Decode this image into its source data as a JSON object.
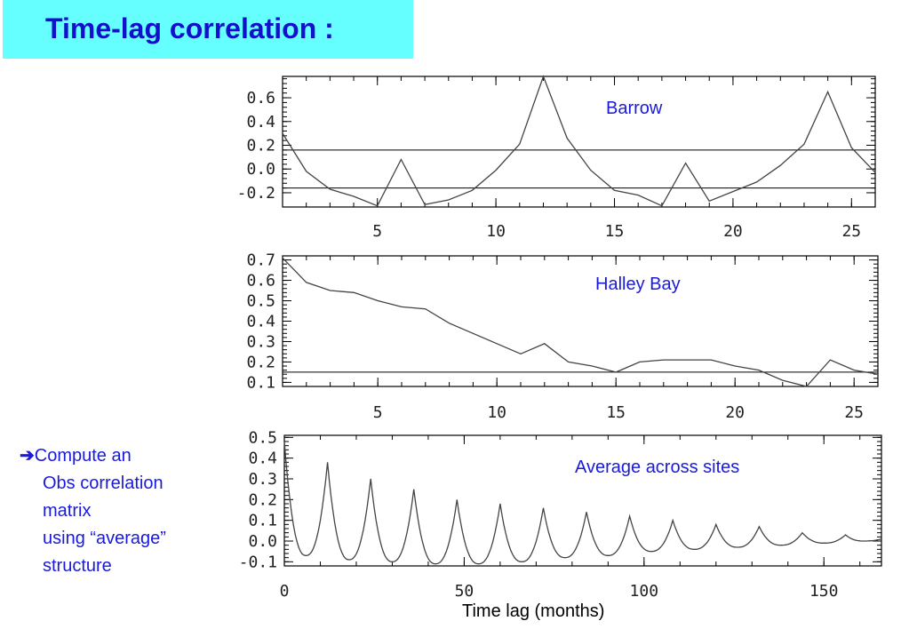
{
  "title": "Time-lag correlation :",
  "side_note": {
    "arrow": "➔",
    "lines": [
      "Compute an",
      "Obs correlation",
      "matrix",
      "using “average”",
      "structure"
    ]
  },
  "colors": {
    "title_bg": "#66ffff",
    "title_text": "#1111cc",
    "annotation_text": "#1a1adb",
    "plot_line": "#444444"
  },
  "x_axis_label": "Time lag (months)",
  "chart_data": [
    {
      "type": "line",
      "label": "Barrow",
      "xlim": [
        1,
        26
      ],
      "ylim": [
        -0.32,
        0.78
      ],
      "xticks": [
        5,
        10,
        15,
        20,
        25
      ],
      "yticks": [
        0.6,
        0.4,
        0.2,
        0.0,
        -0.2
      ],
      "ytick_labels": [
        "0.6",
        "0.4",
        "0.2",
        "0.0",
        "-0.2"
      ],
      "reference_lines": [
        0.16,
        -0.16
      ],
      "x": [
        1,
        2,
        3,
        4,
        5,
        6,
        7,
        8,
        9,
        10,
        11,
        12,
        13,
        14,
        15,
        16,
        17,
        18,
        19,
        20,
        21,
        22,
        23,
        24,
        25,
        26
      ],
      "y": [
        0.3,
        -0.02,
        -0.17,
        -0.23,
        -0.31,
        0.08,
        -0.3,
        -0.26,
        -0.18,
        -0.01,
        0.21,
        0.78,
        0.26,
        -0.01,
        -0.18,
        -0.22,
        -0.31,
        0.05,
        -0.27,
        -0.19,
        -0.11,
        0.03,
        0.21,
        0.65,
        0.18,
        -0.03
      ]
    },
    {
      "type": "line",
      "label": "Halley Bay",
      "xlim": [
        1,
        26
      ],
      "ylim": [
        0.08,
        0.72
      ],
      "xticks": [
        5,
        10,
        15,
        20,
        25
      ],
      "yticks": [
        0.7,
        0.6,
        0.5,
        0.4,
        0.3,
        0.2,
        0.1
      ],
      "ytick_labels": [
        "0.7",
        "0.6",
        "0.5",
        "0.4",
        "0.3",
        "0.2",
        "0.1"
      ],
      "reference_lines": [
        0.15
      ],
      "x": [
        1,
        2,
        3,
        4,
        5,
        6,
        7,
        8,
        9,
        10,
        11,
        12,
        13,
        14,
        15,
        16,
        17,
        18,
        19,
        20,
        21,
        22,
        23,
        24,
        25,
        26
      ],
      "y": [
        0.71,
        0.59,
        0.55,
        0.54,
        0.5,
        0.47,
        0.46,
        0.39,
        0.34,
        0.29,
        0.24,
        0.29,
        0.2,
        0.18,
        0.15,
        0.2,
        0.21,
        0.21,
        0.21,
        0.18,
        0.16,
        0.11,
        0.08,
        0.21,
        0.16,
        0.14
      ]
    },
    {
      "type": "line",
      "label": "Average across sites",
      "xlim": [
        0,
        166
      ],
      "ylim": [
        -0.12,
        0.51
      ],
      "xticks": [
        0,
        50,
        100,
        150
      ],
      "yticks": [
        0.5,
        0.4,
        0.3,
        0.2,
        0.1,
        0.0,
        -0.1
      ],
      "ytick_labels": [
        "0.5",
        "0.4",
        "0.3",
        "0.2",
        "0.1",
        "0.0",
        "-0.1"
      ],
      "reference_lines": [],
      "peaks": [
        {
          "x": 0,
          "y": 0.48,
          "trough": -0.07
        },
        {
          "x": 12,
          "y": 0.38,
          "trough": -0.09
        },
        {
          "x": 24,
          "y": 0.3,
          "trough": -0.1
        },
        {
          "x": 36,
          "y": 0.25,
          "trough": -0.11
        },
        {
          "x": 48,
          "y": 0.2,
          "trough": -0.11
        },
        {
          "x": 60,
          "y": 0.18,
          "trough": -0.1
        },
        {
          "x": 72,
          "y": 0.16,
          "trough": -0.08
        },
        {
          "x": 84,
          "y": 0.14,
          "trough": -0.07
        },
        {
          "x": 96,
          "y": 0.12,
          "trough": -0.05
        },
        {
          "x": 108,
          "y": 0.1,
          "trough": -0.04
        },
        {
          "x": 120,
          "y": 0.08,
          "trough": -0.03
        },
        {
          "x": 132,
          "y": 0.07,
          "trough": -0.02
        },
        {
          "x": 144,
          "y": 0.04,
          "trough": -0.01
        },
        {
          "x": 156,
          "y": 0.03,
          "trough": 0.0
        },
        {
          "x": 166,
          "y": 0.01,
          "trough": 0.0
        }
      ]
    }
  ]
}
